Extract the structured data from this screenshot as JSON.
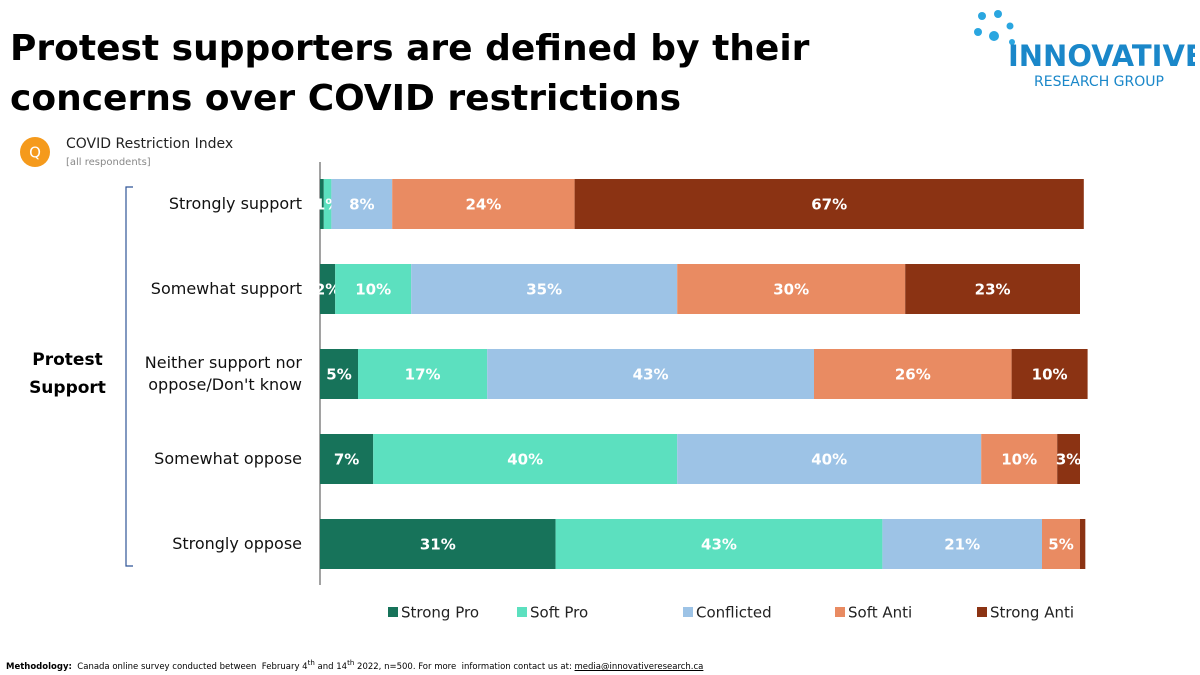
{
  "header": {
    "title": "Protest supporters are defined by their concerns over COVID restrictions"
  },
  "logo": {
    "name": "INNOVATIVE",
    "sub": "RESEARCH GROUP"
  },
  "chart_data": {
    "type": "stacked-bar-horizontal",
    "badge": "Q",
    "title": "COVID Restriction Index",
    "subtitle": "[all respondents]",
    "ylabel": "Protest Support",
    "categories": [
      "Strongly support",
      "Somewhat support",
      "Neither support nor oppose/Don't know",
      "Somewhat oppose",
      "Strongly oppose"
    ],
    "xlim": [
      0,
      100
    ],
    "legend": "bottom",
    "series": [
      {
        "name": "Strong Pro",
        "color": "#17735a",
        "values": [
          0.5,
          2,
          5,
          7,
          31
        ],
        "value_labels": [
          null,
          "2%",
          "5%",
          "7%",
          "31%"
        ]
      },
      {
        "name": "Soft Pro",
        "color": "#5ce0bf",
        "values": [
          1,
          10,
          17,
          40,
          43
        ],
        "value_labels": [
          "1%",
          "10%",
          "17%",
          "40%",
          "43%"
        ]
      },
      {
        "name": "Conflicted",
        "color": "#9dc3e6",
        "values": [
          8,
          35,
          43,
          40,
          21
        ],
        "value_labels": [
          "8%",
          "35%",
          "43%",
          "40%",
          "21%"
        ]
      },
      {
        "name": "Soft Anti",
        "color": "#e98b62",
        "values": [
          24,
          30,
          26,
          10,
          5
        ],
        "value_labels": [
          "24%",
          "30%",
          "26%",
          "10%",
          "5%"
        ]
      },
      {
        "name": "Strong Anti",
        "color": "#8b3313",
        "values": [
          67,
          23,
          10,
          3,
          0.7
        ],
        "value_labels": [
          "67%",
          "23%",
          "10%",
          "3%",
          null
        ]
      }
    ]
  },
  "footer": {
    "label": "Methodology:",
    "text_1": "Canada online survey conducted between  February 4",
    "sup_1": "th",
    "text_2": " and 14",
    "sup_2": "th",
    "text_3": " 2022, n=500. For more  information contact us at: ",
    "link": "media@innovativeresearch.ca"
  }
}
